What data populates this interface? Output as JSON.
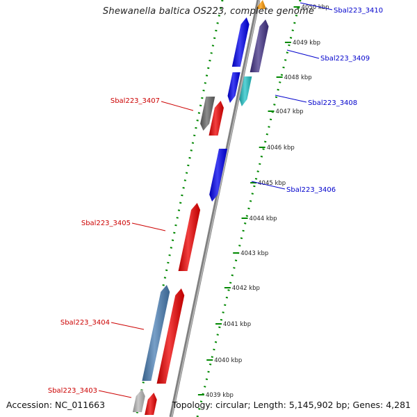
{
  "header": {
    "title": "Shewanella baltica OS223, complete genome"
  },
  "footer": {
    "accession": "Accession: NC_011663",
    "summary": "Topology: circular; Length: 5,145,902 bp; Genes: 4,281"
  },
  "ticks": [
    {
      "label": "4039 kbp",
      "kbp": 4039
    },
    {
      "label": "4040 kbp",
      "kbp": 4040
    },
    {
      "label": "4041 kbp",
      "kbp": 4041
    },
    {
      "label": "4042 kbp",
      "kbp": 4042
    },
    {
      "label": "4043 kbp",
      "kbp": 4043
    },
    {
      "label": "4044 kbp",
      "kbp": 4044
    },
    {
      "label": "4045 kbp",
      "kbp": 4045
    },
    {
      "label": "4046 kbp",
      "kbp": 4046
    },
    {
      "label": "4047 kbp",
      "kbp": 4047
    },
    {
      "label": "4048 kbp",
      "kbp": 4048
    },
    {
      "label": "4049 kbp",
      "kbp": 4049
    },
    {
      "label": "4050 kbp",
      "kbp": 4050
    }
  ],
  "genes": [
    {
      "label": "Sbal223_3410",
      "strand": "plus",
      "color": "#ff9900",
      "labelColor": "#0000cc"
    },
    {
      "label": "Sbal223_3409",
      "strand": "plus",
      "color": "#443388",
      "labelColor": "#0000cc"
    },
    {
      "label": "Sbal223_3408",
      "strand": "plus",
      "color": "#22c4c8",
      "labelColor": "#0000cc"
    },
    {
      "label": "Sbal223_3407",
      "strand": "minus",
      "color": "#666666",
      "labelColor": "#cc0000"
    },
    {
      "label": "Sbal223_3406",
      "strand": "plus",
      "color": "#0000ee",
      "labelColor": "#0000cc"
    },
    {
      "label": "Sbal223_3405",
      "strand": "minus",
      "color": "#ee0000",
      "labelColor": "#cc0000"
    },
    {
      "label": "Sbal223_3404",
      "strand": "minus",
      "color": "#4a7fb5",
      "labelColor": "#cc0000"
    },
    {
      "label": "Sbal223_3403",
      "strand": "minus",
      "color": "#b8b8b8",
      "labelColor": "#cc0000"
    }
  ],
  "colors": {
    "plusCDS": "#0000ee",
    "minusCDS": "#ee0000",
    "backbone": "#808080",
    "gcTrack": "#008800"
  }
}
